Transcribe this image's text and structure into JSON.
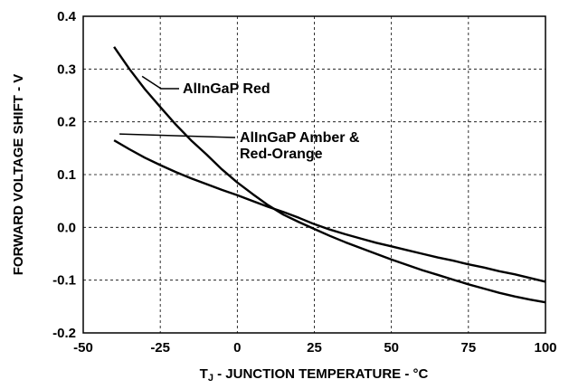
{
  "chart_data": {
    "type": "line",
    "title": "",
    "xlabel": {
      "prefix": "T",
      "subscript": "J",
      "suffix": " - JUNCTION TEMPERATURE - °C"
    },
    "ylabel": "FORWARD VOLTAGE SHIFT - V",
    "xlim": [
      -50,
      100
    ],
    "ylim": [
      -0.2,
      0.4
    ],
    "x_ticks": [
      "-50",
      "-25",
      "0",
      "25",
      "50",
      "75",
      "100"
    ],
    "y_ticks": [
      "0.4",
      "0.3",
      "0.2",
      "0.1",
      "0.0",
      "-0.1",
      "-0.2"
    ],
    "grid": "dashed",
    "legend": "none",
    "series": [
      {
        "name": "AlInGaP Red",
        "x": [
          -40,
          -35,
          -30,
          -25,
          -20,
          -15,
          -10,
          -5,
          0,
          5,
          10,
          15,
          20,
          25,
          30,
          35,
          40,
          45,
          50,
          55,
          60,
          65,
          70,
          75,
          80,
          85,
          90,
          95,
          100
        ],
        "y": [
          0.342,
          0.3,
          0.262,
          0.228,
          0.195,
          0.165,
          0.138,
          0.11,
          0.085,
          0.063,
          0.042,
          0.024,
          0.01,
          -0.003,
          -0.016,
          -0.028,
          -0.039,
          -0.05,
          -0.061,
          -0.071,
          -0.081,
          -0.09,
          -0.099,
          -0.108,
          -0.116,
          -0.124,
          -0.131,
          -0.137,
          -0.142
        ]
      },
      {
        "name": "AlInGaP Amber & Red-Orange",
        "x": [
          -40,
          -35,
          -30,
          -25,
          -20,
          -15,
          -10,
          -5,
          0,
          5,
          10,
          15,
          20,
          25,
          30,
          35,
          40,
          45,
          50,
          55,
          60,
          65,
          70,
          75,
          80,
          85,
          90,
          95,
          100
        ],
        "y": [
          0.165,
          0.148,
          0.132,
          0.118,
          0.105,
          0.093,
          0.082,
          0.071,
          0.061,
          0.05,
          0.039,
          0.029,
          0.018,
          0.006,
          -0.004,
          -0.013,
          -0.021,
          -0.029,
          -0.036,
          -0.043,
          -0.05,
          -0.057,
          -0.063,
          -0.07,
          -0.076,
          -0.083,
          -0.089,
          -0.096,
          -0.103
        ]
      }
    ],
    "annotations": [
      {
        "lines": [
          "AlInGaP Red"
        ],
        "series": 0,
        "at_x": -35
      },
      {
        "lines": [
          "AlInGaP Amber &",
          "Red-Orange"
        ],
        "series": 1,
        "at_x": -40
      }
    ],
    "colors": {
      "line": "#000000",
      "grid": "#000000",
      "background": "#ffffff"
    }
  }
}
